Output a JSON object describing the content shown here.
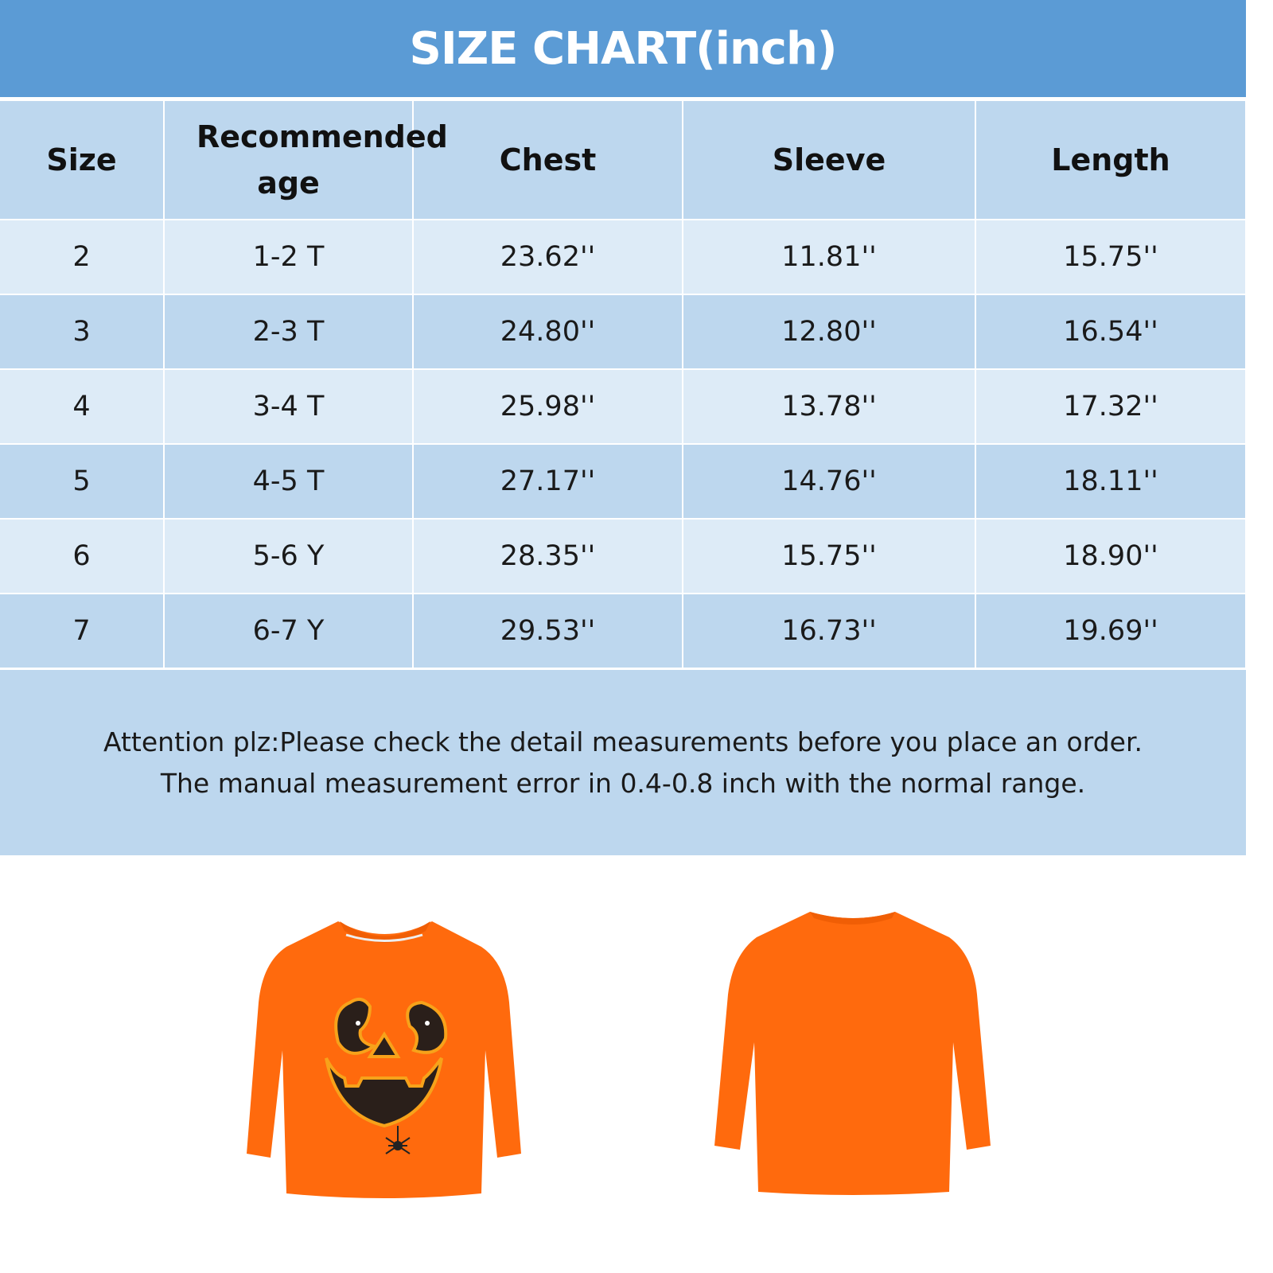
{
  "title": "SIZE CHART(inch)",
  "colors": {
    "title_bar": "#5b9bd5",
    "header_bg": "#bdd7ee",
    "row_light": "#ddebf7",
    "row_dark": "#bdd7ee",
    "shirt": "#ff6a0d"
  },
  "table": {
    "headers": [
      "Size",
      "Recommended age",
      "Chest",
      "Sleeve",
      "Length"
    ],
    "rows": [
      [
        "2",
        "1-2 T",
        "23.62''",
        "11.81''",
        "15.75''"
      ],
      [
        "3",
        "2-3 T",
        "24.80''",
        "12.80''",
        "16.54''"
      ],
      [
        "4",
        "3-4 T",
        "25.98''",
        "13.78''",
        "17.32''"
      ],
      [
        "5",
        "4-5 T",
        "27.17''",
        "14.76''",
        "18.11''"
      ],
      [
        "6",
        "5-6 Y",
        "28.35''",
        "15.75''",
        "18.90''"
      ],
      [
        "7",
        "6-7 Y",
        "29.53''",
        "16.73''",
        "19.69''"
      ]
    ]
  },
  "note": {
    "line1": "Attention plz:Please check the detail measurements before you place an order.",
    "line2": "The manual measurement error in 0.4-0.8 inch with the normal range."
  },
  "images": [
    "shirt-front-pumpkin-face",
    "shirt-back"
  ]
}
